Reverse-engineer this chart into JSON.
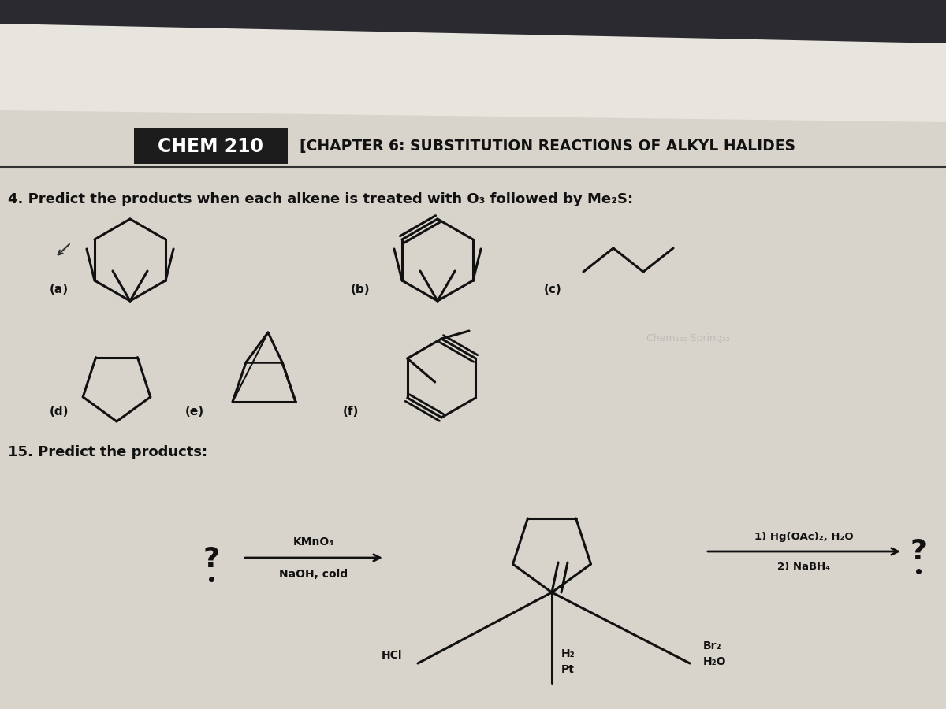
{
  "bg_color": "#d0cbc0",
  "header_bg": "#1c1c1c",
  "header_text_color": "#ffffff",
  "header_chem210": "CHEM 210",
  "header_chapter": "[CHAPTER 6: SUBSTITUTION REACTIONS OF ALKYL HALIDES",
  "question4_text": "4. Predict the products when each alkene is treated with O₃ followed by Me₂S:",
  "question15_text": "15. Predict the products:",
  "top_dark_stripe_color": "#2a2a30"
}
